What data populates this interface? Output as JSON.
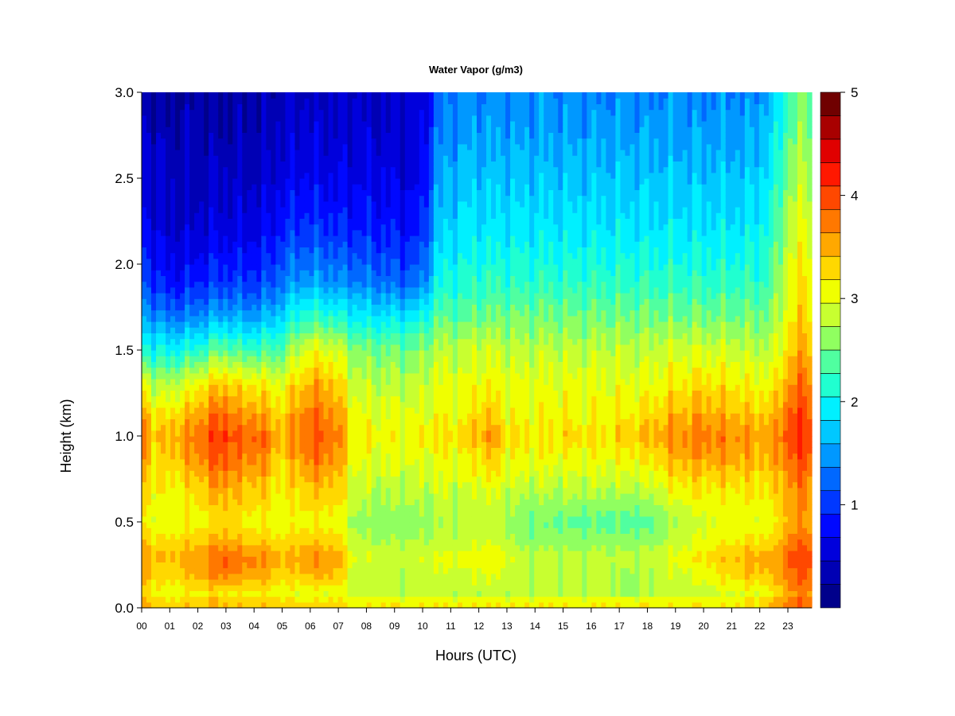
{
  "chart_data": {
    "type": "heatmap",
    "title": "Water Vapor (g/m3)",
    "xlabel": "Hours (UTC)",
    "ylabel": "Height (km)",
    "xlim": [
      0,
      23.85
    ],
    "ylim": [
      0,
      3.0
    ],
    "x_ticks": [
      "00",
      "01",
      "02",
      "03",
      "04",
      "05",
      "06",
      "07",
      "08",
      "09",
      "10",
      "11",
      "12",
      "13",
      "14",
      "15",
      "16",
      "17",
      "18",
      "19",
      "20",
      "21",
      "22",
      "23"
    ],
    "y_ticks": [
      "0.0",
      "0.5",
      "1.0",
      "1.5",
      "2.0",
      "2.5",
      "3.0"
    ],
    "colorbar": {
      "levels": [
        0.25,
        0.5,
        0.75,
        1.0,
        1.25,
        1.5,
        1.75,
        2.0,
        2.25,
        2.5,
        2.75,
        3.0,
        3.25,
        3.5,
        3.75,
        4.0,
        4.25,
        4.5,
        4.75,
        5.0
      ],
      "ticks": [
        "1",
        "2",
        "3",
        "4",
        "5"
      ],
      "colors": [
        "#00008b",
        "#0000b4",
        "#0000dc",
        "#0008ff",
        "#0038ff",
        "#0068ff",
        "#0098ff",
        "#00c8ff",
        "#00f0ff",
        "#20ffd0",
        "#50ffa0",
        "#90ff60",
        "#c8ff30",
        "#f0ff00",
        "#ffd800",
        "#ffa800",
        "#ff7800",
        "#ff4800",
        "#ff1800",
        "#e00000",
        "#a80000",
        "#700000"
      ]
    },
    "heights_km": [
      0.0,
      0.03,
      0.08,
      0.2,
      0.3,
      0.4,
      0.5,
      0.7,
      0.9,
      1.0,
      1.1,
      1.3,
      1.5,
      1.7,
      1.9,
      2.2,
      2.5,
      2.8,
      3.0
    ],
    "columns": [
      {
        "hour": 0.0,
        "profile": [
          3.4,
          3.6,
          3.3,
          3.6,
          3.7,
          3.4,
          3.2,
          3.4,
          3.8,
          3.9,
          3.7,
          3.2,
          2.2,
          1.6,
          1.2,
          0.8,
          0.6,
          0.5,
          0.45
        ]
      },
      {
        "hour": 0.5,
        "profile": [
          3.3,
          3.4,
          3.1,
          3.3,
          3.4,
          3.2,
          3.0,
          3.1,
          3.2,
          3.3,
          3.2,
          2.7,
          2.0,
          1.4,
          0.9,
          0.6,
          0.45,
          0.35,
          0.3
        ]
      },
      {
        "hour": 1.0,
        "profile": [
          3.2,
          3.3,
          3.0,
          3.3,
          3.4,
          3.2,
          3.0,
          3.1,
          3.4,
          3.5,
          3.3,
          2.8,
          2.0,
          1.3,
          0.8,
          0.5,
          0.4,
          0.3,
          0.25
        ]
      },
      {
        "hour": 1.5,
        "profile": [
          3.3,
          3.4,
          3.1,
          3.4,
          3.5,
          3.3,
          3.1,
          3.2,
          3.5,
          3.6,
          3.4,
          2.9,
          2.1,
          1.3,
          0.8,
          0.5,
          0.4,
          0.3,
          0.25
        ]
      },
      {
        "hour": 2.0,
        "profile": [
          3.3,
          3.4,
          3.1,
          3.5,
          3.6,
          3.3,
          3.1,
          3.3,
          3.7,
          3.8,
          3.6,
          3.1,
          2.2,
          1.4,
          0.9,
          0.5,
          0.4,
          0.3,
          0.25
        ]
      },
      {
        "hour": 2.5,
        "profile": [
          3.4,
          3.5,
          3.2,
          3.7,
          3.8,
          3.4,
          3.2,
          3.5,
          3.9,
          4.0,
          3.8,
          3.3,
          2.4,
          1.5,
          1.0,
          0.6,
          0.45,
          0.3,
          0.25
        ]
      },
      {
        "hour": 3.0,
        "profile": [
          3.4,
          3.5,
          3.2,
          3.8,
          3.9,
          3.5,
          3.3,
          3.6,
          4.0,
          4.1,
          3.9,
          3.4,
          2.5,
          1.6,
          1.0,
          0.6,
          0.45,
          0.3,
          0.25
        ]
      },
      {
        "hour": 3.5,
        "profile": [
          3.3,
          3.4,
          3.1,
          3.6,
          3.7,
          3.4,
          3.2,
          3.4,
          3.7,
          3.8,
          3.6,
          3.2,
          2.3,
          1.5,
          1.0,
          0.6,
          0.45,
          0.3,
          0.25
        ]
      },
      {
        "hour": 4.0,
        "profile": [
          3.3,
          3.4,
          3.1,
          3.6,
          3.7,
          3.3,
          3.1,
          3.4,
          3.8,
          3.9,
          3.7,
          3.2,
          2.3,
          1.5,
          1.0,
          0.6,
          0.45,
          0.3,
          0.25
        ]
      },
      {
        "hour": 4.5,
        "profile": [
          3.3,
          3.4,
          3.1,
          3.5,
          3.6,
          3.3,
          3.1,
          3.3,
          3.6,
          3.7,
          3.5,
          3.1,
          2.3,
          1.6,
          1.1,
          0.7,
          0.5,
          0.35,
          0.3
        ]
      },
      {
        "hour": 5.0,
        "profile": [
          3.2,
          3.3,
          3.0,
          3.3,
          3.4,
          3.2,
          3.0,
          3.1,
          3.3,
          3.4,
          3.3,
          3.0,
          2.4,
          1.8,
          1.3,
          0.9,
          0.6,
          0.45,
          0.4
        ]
      },
      {
        "hour": 5.5,
        "profile": [
          3.2,
          3.3,
          3.0,
          3.4,
          3.5,
          3.3,
          3.1,
          3.3,
          3.6,
          3.7,
          3.6,
          3.3,
          2.8,
          2.1,
          1.5,
          1.0,
          0.7,
          0.5,
          0.45
        ]
      },
      {
        "hour": 6.0,
        "profile": [
          3.2,
          3.3,
          3.0,
          3.5,
          3.6,
          3.3,
          3.1,
          3.4,
          3.8,
          3.9,
          3.8,
          3.5,
          3.0,
          2.2,
          1.5,
          1.0,
          0.7,
          0.5,
          0.45
        ]
      },
      {
        "hour": 6.5,
        "profile": [
          3.2,
          3.3,
          3.0,
          3.5,
          3.6,
          3.3,
          3.1,
          3.4,
          3.8,
          3.9,
          3.8,
          3.5,
          3.0,
          2.2,
          1.5,
          1.0,
          0.65,
          0.5,
          0.45
        ]
      },
      {
        "hour": 7.0,
        "profile": [
          3.2,
          3.3,
          3.0,
          3.4,
          3.5,
          3.3,
          3.1,
          3.3,
          3.6,
          3.7,
          3.6,
          3.3,
          2.9,
          2.1,
          1.4,
          0.9,
          0.65,
          0.5,
          0.45
        ]
      },
      {
        "hour": 7.5,
        "profile": [
          3.1,
          3.2,
          2.8,
          2.9,
          3.0,
          2.8,
          2.7,
          2.9,
          3.1,
          3.2,
          3.1,
          2.9,
          2.6,
          2.0,
          1.4,
          0.9,
          0.65,
          0.5,
          0.45
        ]
      },
      {
        "hour": 8.0,
        "profile": [
          3.1,
          3.2,
          2.8,
          2.8,
          2.9,
          2.7,
          2.6,
          2.8,
          3.0,
          3.1,
          3.0,
          2.8,
          2.5,
          1.9,
          1.3,
          0.9,
          0.65,
          0.5,
          0.45
        ]
      },
      {
        "hour": 8.5,
        "profile": [
          3.1,
          3.2,
          2.8,
          2.8,
          2.9,
          2.7,
          2.6,
          2.8,
          3.0,
          3.1,
          3.0,
          2.8,
          2.5,
          1.9,
          1.3,
          0.85,
          0.65,
          0.5,
          0.45
        ]
      },
      {
        "hour": 9.0,
        "profile": [
          3.1,
          3.2,
          2.8,
          2.8,
          2.9,
          2.7,
          2.6,
          2.8,
          3.0,
          3.1,
          3.0,
          2.8,
          2.5,
          1.9,
          1.2,
          0.85,
          0.6,
          0.5,
          0.45
        ]
      },
      {
        "hour": 9.5,
        "profile": [
          3.1,
          3.2,
          2.8,
          2.8,
          2.9,
          2.7,
          2.6,
          2.8,
          3.0,
          3.1,
          3.0,
          2.8,
          2.5,
          1.9,
          1.2,
          0.8,
          0.6,
          0.5,
          0.45
        ]
      },
      {
        "hour": 10.0,
        "profile": [
          3.1,
          3.2,
          2.8,
          2.8,
          2.9,
          2.7,
          2.6,
          2.8,
          3.0,
          3.1,
          3.0,
          2.8,
          2.6,
          2.0,
          1.3,
          0.9,
          0.7,
          0.55,
          0.5
        ]
      },
      {
        "hour": 10.5,
        "profile": [
          3.1,
          3.2,
          2.8,
          2.9,
          3.0,
          2.8,
          2.7,
          2.9,
          3.1,
          3.2,
          3.1,
          3.0,
          2.8,
          2.4,
          2.0,
          1.7,
          1.5,
          1.3,
          1.2
        ]
      },
      {
        "hour": 11.0,
        "profile": [
          3.1,
          3.2,
          2.8,
          2.9,
          3.0,
          2.8,
          2.7,
          2.9,
          3.1,
          3.2,
          3.1,
          3.0,
          2.8,
          2.4,
          2.1,
          1.8,
          1.6,
          1.4,
          1.3
        ]
      },
      {
        "hour": 11.5,
        "profile": [
          3.1,
          3.2,
          2.8,
          2.9,
          3.0,
          2.8,
          2.7,
          2.9,
          3.1,
          3.2,
          3.1,
          3.0,
          2.8,
          2.4,
          2.1,
          1.9,
          1.7,
          1.5,
          1.4
        ]
      },
      {
        "hour": 12.0,
        "profile": [
          3.1,
          3.2,
          2.8,
          3.0,
          3.1,
          2.9,
          2.8,
          3.0,
          3.3,
          3.5,
          3.4,
          3.1,
          2.9,
          2.5,
          2.2,
          1.9,
          1.7,
          1.5,
          1.4
        ]
      },
      {
        "hour": 12.5,
        "profile": [
          3.1,
          3.2,
          2.8,
          3.0,
          3.1,
          2.9,
          2.8,
          3.0,
          3.4,
          3.6,
          3.4,
          3.1,
          2.9,
          2.5,
          2.2,
          1.9,
          1.7,
          1.5,
          1.4
        ]
      },
      {
        "hour": 13.0,
        "profile": [
          3.1,
          3.2,
          2.8,
          2.9,
          3.0,
          2.8,
          2.7,
          2.9,
          3.1,
          3.2,
          3.1,
          3.0,
          2.8,
          2.5,
          2.2,
          1.9,
          1.7,
          1.5,
          1.4
        ]
      },
      {
        "hour": 13.5,
        "profile": [
          3.1,
          3.2,
          2.8,
          2.8,
          2.8,
          2.6,
          2.5,
          2.8,
          3.1,
          3.2,
          3.1,
          3.0,
          2.8,
          2.5,
          2.2,
          1.9,
          1.7,
          1.5,
          1.4
        ]
      },
      {
        "hour": 14.0,
        "profile": [
          3.1,
          3.2,
          2.8,
          2.8,
          2.8,
          2.6,
          2.5,
          2.8,
          3.1,
          3.2,
          3.1,
          3.0,
          2.8,
          2.5,
          2.2,
          1.9,
          1.7,
          1.5,
          1.5
        ]
      },
      {
        "hour": 14.5,
        "profile": [
          3.1,
          3.2,
          2.8,
          2.8,
          2.8,
          2.6,
          2.5,
          2.8,
          3.1,
          3.2,
          3.1,
          3.0,
          2.8,
          2.5,
          2.2,
          1.9,
          1.7,
          1.5,
          1.4
        ]
      },
      {
        "hour": 15.0,
        "profile": [
          3.1,
          3.2,
          2.8,
          2.8,
          2.8,
          2.6,
          2.5,
          2.8,
          3.1,
          3.3,
          3.2,
          3.0,
          2.8,
          2.5,
          2.2,
          1.9,
          1.7,
          1.5,
          1.4
        ]
      },
      {
        "hour": 15.5,
        "profile": [
          3.1,
          3.2,
          2.8,
          2.8,
          2.8,
          2.6,
          2.4,
          2.8,
          3.1,
          3.2,
          3.1,
          3.0,
          2.8,
          2.5,
          2.2,
          1.9,
          1.7,
          1.5,
          1.4
        ]
      },
      {
        "hour": 16.0,
        "profile": [
          3.1,
          3.2,
          2.8,
          2.8,
          2.8,
          2.6,
          2.4,
          2.8,
          3.1,
          3.2,
          3.1,
          3.0,
          2.8,
          2.5,
          2.2,
          1.9,
          1.7,
          1.5,
          1.4
        ]
      },
      {
        "hour": 16.5,
        "profile": [
          3.1,
          3.2,
          2.8,
          2.8,
          2.8,
          2.6,
          2.4,
          2.8,
          3.1,
          3.2,
          3.1,
          3.0,
          2.8,
          2.5,
          2.2,
          1.9,
          1.7,
          1.5,
          1.4
        ]
      },
      {
        "hour": 17.0,
        "profile": [
          3.1,
          3.2,
          2.7,
          2.7,
          2.8,
          2.6,
          2.4,
          2.8,
          3.1,
          3.3,
          3.2,
          3.0,
          2.8,
          2.5,
          2.2,
          1.9,
          1.7,
          1.5,
          1.4
        ]
      },
      {
        "hour": 17.5,
        "profile": [
          3.1,
          3.2,
          2.7,
          2.7,
          2.8,
          2.6,
          2.4,
          2.8,
          3.2,
          3.4,
          3.2,
          3.0,
          2.8,
          2.5,
          2.2,
          1.9,
          1.7,
          1.5,
          1.4
        ]
      },
      {
        "hour": 18.0,
        "profile": [
          3.1,
          3.2,
          2.7,
          2.7,
          2.8,
          2.6,
          2.4,
          2.8,
          3.2,
          3.4,
          3.3,
          3.0,
          2.8,
          2.5,
          2.2,
          1.9,
          1.7,
          1.5,
          1.4
        ]
      },
      {
        "hour": 18.5,
        "profile": [
          3.1,
          3.2,
          2.8,
          2.8,
          2.9,
          2.7,
          2.6,
          3.0,
          3.4,
          3.6,
          3.4,
          3.1,
          2.9,
          2.5,
          2.2,
          1.9,
          1.7,
          1.5,
          1.4
        ]
      },
      {
        "hour": 19.0,
        "profile": [
          3.1,
          3.2,
          2.8,
          2.9,
          3.0,
          2.8,
          2.7,
          3.1,
          3.5,
          3.7,
          3.5,
          3.2,
          2.9,
          2.5,
          2.2,
          1.9,
          1.7,
          1.5,
          1.4
        ]
      },
      {
        "hour": 19.5,
        "profile": [
          3.1,
          3.2,
          2.8,
          3.0,
          3.1,
          2.9,
          2.8,
          3.2,
          3.6,
          3.7,
          3.5,
          3.2,
          2.9,
          2.5,
          2.2,
          1.9,
          1.7,
          1.5,
          1.4
        ]
      },
      {
        "hour": 20.0,
        "profile": [
          3.1,
          3.2,
          2.8,
          3.1,
          3.2,
          3.0,
          2.9,
          3.2,
          3.6,
          3.8,
          3.6,
          3.3,
          2.9,
          2.5,
          2.2,
          1.9,
          1.7,
          1.5,
          1.4
        ]
      },
      {
        "hour": 20.5,
        "profile": [
          3.1,
          3.2,
          2.9,
          3.2,
          3.3,
          3.1,
          3.0,
          3.2,
          3.6,
          3.7,
          3.5,
          3.2,
          2.9,
          2.5,
          2.2,
          1.9,
          1.7,
          1.5,
          1.4
        ]
      },
      {
        "hour": 21.0,
        "profile": [
          3.1,
          3.2,
          2.9,
          3.3,
          3.4,
          3.1,
          3.0,
          3.2,
          3.6,
          3.7,
          3.5,
          3.2,
          2.9,
          2.5,
          2.2,
          1.9,
          1.7,
          1.5,
          1.4
        ]
      },
      {
        "hour": 21.5,
        "profile": [
          3.1,
          3.3,
          3.0,
          3.4,
          3.5,
          3.2,
          3.0,
          3.2,
          3.5,
          3.6,
          3.4,
          3.1,
          2.8,
          2.5,
          2.2,
          1.9,
          1.7,
          1.5,
          1.4
        ]
      },
      {
        "hour": 22.0,
        "profile": [
          3.2,
          3.3,
          3.0,
          3.4,
          3.5,
          3.2,
          3.0,
          3.2,
          3.5,
          3.6,
          3.4,
          3.1,
          2.8,
          2.5,
          2.2,
          2.0,
          1.8,
          1.6,
          1.5
        ]
      },
      {
        "hour": 22.5,
        "profile": [
          3.4,
          3.5,
          3.1,
          3.4,
          3.5,
          3.2,
          3.0,
          3.2,
          3.5,
          3.6,
          3.4,
          3.1,
          2.8,
          2.6,
          2.4,
          2.2,
          2.0,
          1.8,
          1.7
        ]
      },
      {
        "hour": 23.0,
        "profile": [
          3.7,
          3.8,
          3.6,
          3.8,
          3.9,
          3.7,
          3.5,
          3.6,
          3.9,
          4.0,
          3.9,
          3.6,
          3.3,
          3.1,
          3.0,
          2.8,
          2.6,
          2.4,
          2.3
        ]
      },
      {
        "hour": 23.5,
        "profile": [
          3.8,
          3.9,
          3.7,
          3.9,
          4.0,
          3.8,
          3.6,
          3.7,
          4.0,
          4.1,
          4.0,
          3.8,
          3.5,
          3.3,
          3.2,
          3.0,
          2.8,
          2.6,
          2.5
        ]
      },
      {
        "hour": 23.85,
        "profile": [
          3.8,
          3.9,
          3.7,
          3.9,
          4.0,
          3.8,
          3.6,
          3.7,
          4.0,
          4.1,
          4.0,
          3.8,
          3.5,
          3.3,
          3.2,
          3.0,
          2.8,
          2.6,
          2.5
        ]
      }
    ]
  }
}
